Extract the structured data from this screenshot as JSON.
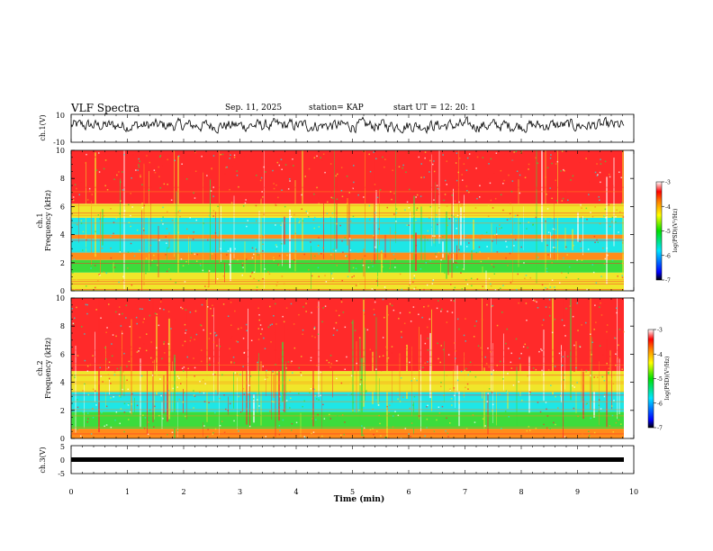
{
  "header": {
    "title": "VLF Spectra",
    "date": "Sep. 11, 2025",
    "station": "station= KAP",
    "start_ut": "start  UT  =   12: 20: 1"
  },
  "chart_data": [
    {
      "type": "line",
      "name": "ch1-waveform",
      "ylabel": "ch.1(V)",
      "ylim": [
        -10,
        10
      ],
      "ytick_labels": [
        "10",
        "-10"
      ],
      "description_values": "noisy waveform centered near +2 V, range about -5 to +9 V"
    },
    {
      "type": "heatmap",
      "name": "ch1-spectrogram",
      "ylabel": "ch.1",
      "ylabel2": "Frequency  (kHz)",
      "ylim": [
        0,
        10
      ],
      "ytick_labels": [
        "0",
        "2",
        "4",
        "6",
        "8",
        "10"
      ],
      "bands": [
        {
          "from": 0,
          "to": 1.3,
          "level": "yellow"
        },
        {
          "from": 1.3,
          "to": 2.2,
          "level": "green"
        },
        {
          "from": 2.2,
          "to": 2.7,
          "level": "orange"
        },
        {
          "from": 2.7,
          "to": 3.7,
          "level": "cyan"
        },
        {
          "from": 3.7,
          "to": 4.0,
          "level": "orange"
        },
        {
          "from": 4.0,
          "to": 5.2,
          "level": "cyan"
        },
        {
          "from": 5.2,
          "to": 6.2,
          "level": "yellow"
        },
        {
          "from": 6.2,
          "to": 10,
          "level": "red"
        }
      ],
      "colorbar": {
        "label": "log(PSD)(V²/Hz)",
        "tick_labels": [
          "-3",
          "-4",
          "-5",
          "-6",
          "-7"
        ],
        "range": [
          -7,
          -3
        ]
      }
    },
    {
      "type": "heatmap",
      "name": "ch2-spectrogram",
      "ylabel": "ch.2",
      "ylabel2": "Frequency  (kHz)",
      "ylim": [
        0,
        10
      ],
      "ytick_labels": [
        "0",
        "2",
        "4",
        "6",
        "8",
        "10"
      ],
      "bands": [
        {
          "from": 0,
          "to": 0.7,
          "level": "orange"
        },
        {
          "from": 0.7,
          "to": 1.9,
          "level": "green"
        },
        {
          "from": 1.9,
          "to": 3.3,
          "level": "cyan"
        },
        {
          "from": 3.3,
          "to": 4.8,
          "level": "yellow"
        },
        {
          "from": 4.8,
          "to": 10,
          "level": "red"
        }
      ],
      "colorbar": {
        "label": "log(PSD)(V²/Hz)",
        "tick_labels": [
          "-3",
          "-4",
          "-5",
          "-6",
          "-7"
        ],
        "range": [
          -7,
          -3
        ]
      }
    },
    {
      "type": "line",
      "name": "ch3-signal",
      "ylabel": "ch.3(V)",
      "ylim": [
        -5,
        5
      ],
      "ytick_labels": [
        "5",
        "0",
        "-5"
      ],
      "level": 0,
      "xlim": [
        0,
        10
      ],
      "xtick_labels": [
        "0",
        "1",
        "2",
        "3",
        "4",
        "5",
        "6",
        "7",
        "8",
        "9",
        "10"
      ],
      "xlabel": "Time  (min)"
    }
  ],
  "colors": {
    "red": "#ff2a2a",
    "orange": "#ff8c1a",
    "yellow": "#f0e62a",
    "green": "#3cdc3c",
    "cyan": "#1ee6e6",
    "white": "#ffffff"
  }
}
